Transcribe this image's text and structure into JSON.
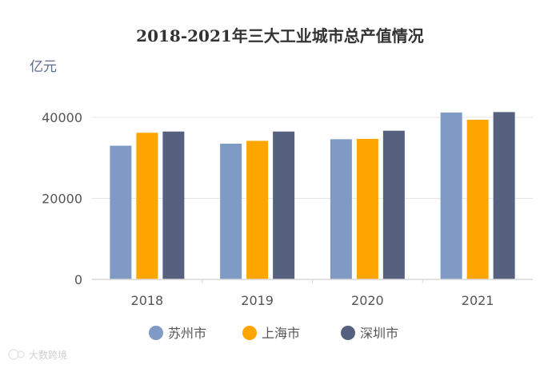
{
  "chart_data": {
    "type": "bar",
    "title": "2018-2021年三大工业城市总产值情况",
    "ylabel": "亿元",
    "xlabel": "",
    "categories": [
      "2018",
      "2019",
      "2020",
      "2021"
    ],
    "series": [
      {
        "name": "苏州市",
        "color": "#7f9ac4",
        "values": [
          33000,
          33500,
          34600,
          41200
        ]
      },
      {
        "name": "上海市",
        "color": "#ffa500",
        "values": [
          36200,
          34200,
          34700,
          39400
        ]
      },
      {
        "name": "深圳市",
        "color": "#56617f",
        "values": [
          36500,
          36500,
          36700,
          41300
        ]
      }
    ],
    "ylim": [
      0,
      40000
    ],
    "yticks": [
      0,
      20000,
      40000
    ],
    "ytick_labels": [
      "0",
      "20000",
      "40000"
    ],
    "grid": true,
    "legend_position": "bottom-center"
  },
  "watermark": "大数跨境"
}
